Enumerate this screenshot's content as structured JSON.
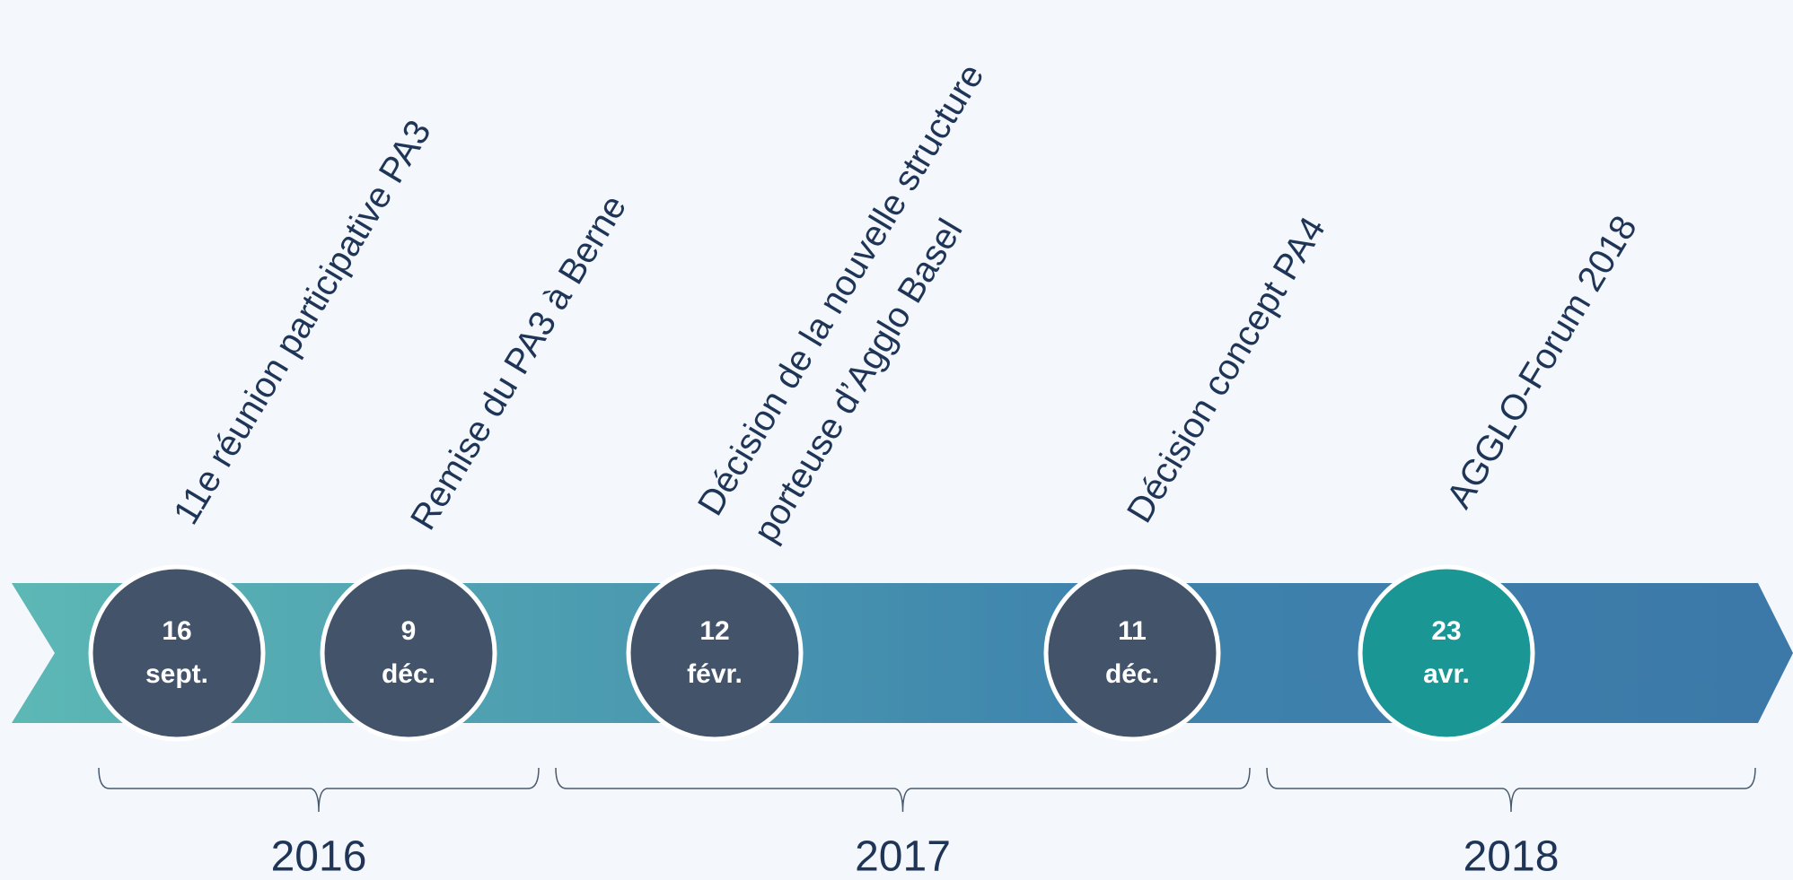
{
  "events": [
    {
      "day": "16",
      "month": "sept.",
      "label": [
        "11e réunion participative PA3"
      ]
    },
    {
      "day": "9",
      "month": "déc.",
      "label": [
        "Remise du PA3 à Berne"
      ]
    },
    {
      "day": "12",
      "month": "févr.",
      "label": [
        "Décision de la nouvelle structure",
        "porteuse d’Agglo Basel"
      ]
    },
    {
      "day": "11",
      "month": "déc.",
      "label": [
        "Décision concept PA4"
      ]
    },
    {
      "day": "23",
      "month": "avr.",
      "label": [
        "AGGLO-Forum 2018"
      ]
    }
  ],
  "years": [
    "2016",
    "2017",
    "2018"
  ]
}
